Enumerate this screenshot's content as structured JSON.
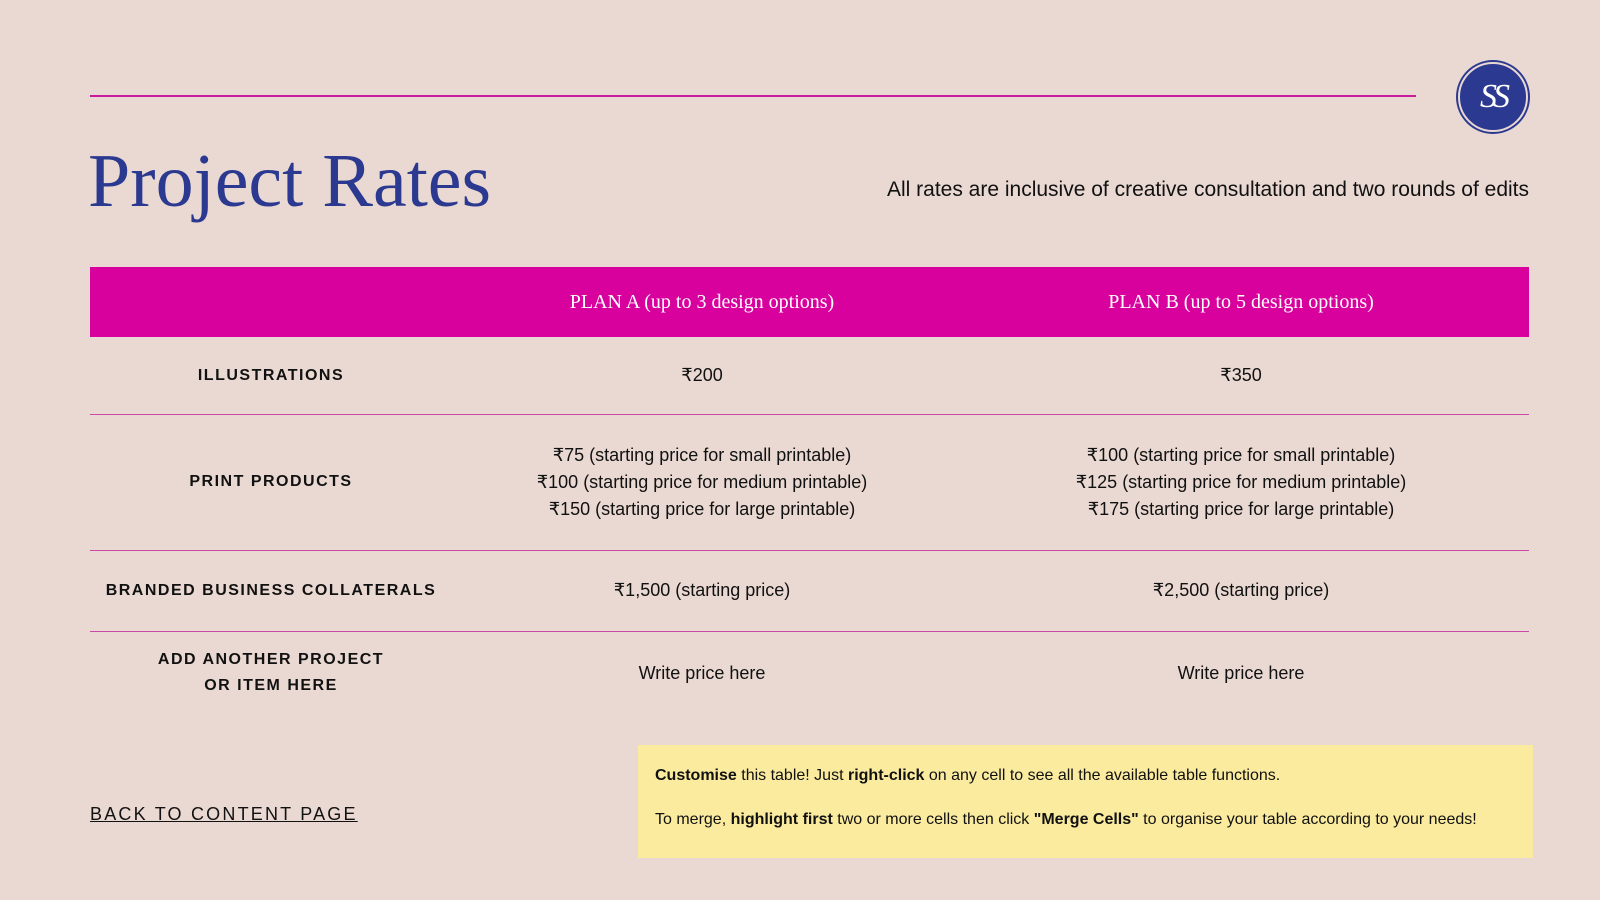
{
  "header": {
    "title": "Project Rates",
    "subtitle": "All rates are inclusive of creative consultation and two rounds of edits",
    "logo": "SS"
  },
  "table": {
    "columns": [
      "PLAN A (up to 3 design options)",
      "PLAN B (up to 5 design options)"
    ],
    "rows": [
      {
        "label": [
          "ILLUSTRATIONS"
        ],
        "cells": [
          [
            "₹200"
          ],
          [
            "₹350"
          ]
        ]
      },
      {
        "label": [
          "PRINT PRODUCTS"
        ],
        "cells": [
          [
            "₹75 (starting price for small printable)",
            "₹100 (starting price for medium printable)",
            "₹150 (starting price for large printable)"
          ],
          [
            "₹100 (starting price for small printable)",
            "₹125 (starting price for medium printable)",
            "₹175 (starting price for large printable)"
          ]
        ]
      },
      {
        "label": [
          "BRANDED BUSINESS COLLATERALS"
        ],
        "cells": [
          [
            "₹1,500 (starting price)"
          ],
          [
            "₹2,500 (starting price)"
          ]
        ]
      },
      {
        "label": [
          "ADD ANOTHER PROJECT",
          "OR ITEM HERE"
        ],
        "cells": [
          [
            "Write price here"
          ],
          [
            "Write price here"
          ]
        ]
      }
    ]
  },
  "note": {
    "paragraphs": [
      [
        {
          "text": "Customise",
          "bold": true
        },
        {
          "text": " this table! Just ",
          "bold": false
        },
        {
          "text": "right-click",
          "bold": true
        },
        {
          "text": " on any cell to see all the available table functions.",
          "bold": false
        }
      ],
      [
        {
          "text": "To merge, ",
          "bold": false
        },
        {
          "text": "highlight first",
          "bold": true
        },
        {
          "text": " two or more cells then click ",
          "bold": false
        },
        {
          "text": "\"Merge Cells\"",
          "bold": true
        },
        {
          "text": " to organise your table according to your needs!",
          "bold": false
        }
      ]
    ]
  },
  "back_link": "BACK TO CONTENT PAGE"
}
